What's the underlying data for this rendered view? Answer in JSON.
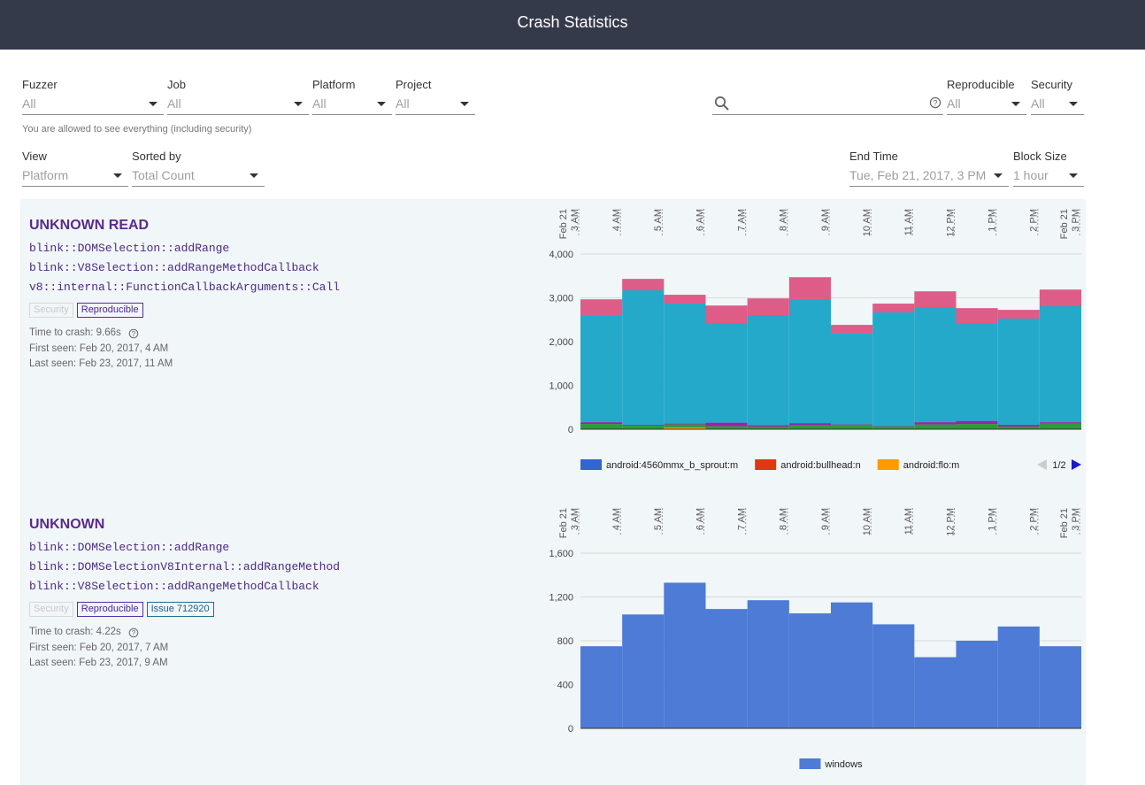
{
  "header": {
    "title": "Crash Statistics"
  },
  "filters": [
    {
      "label": "Fuzzer",
      "value": "All"
    },
    {
      "label": "Job",
      "value": "All"
    },
    {
      "label": "Platform",
      "value": "All"
    },
    {
      "label": "Project",
      "value": "All"
    },
    {
      "label": "Reproducible",
      "value": "All"
    },
    {
      "label": "Security",
      "value": "All"
    }
  ],
  "permission_note": "You are allowed to see everything (including security)",
  "view_controls": [
    {
      "label": "View",
      "value": "Platform"
    },
    {
      "label": "Sorted by",
      "value": "Total Count"
    },
    {
      "label": "End Time",
      "value": "Tue, Feb 21, 2017, 3 PM"
    },
    {
      "label": "Block Size",
      "value": "1 hour"
    }
  ],
  "crashes": [
    {
      "title": "UNKNOWN READ",
      "stack": [
        "blink::DOMSelection::addRange",
        "blink::V8Selection::addRangeMethodCallback",
        "v8::internal::FunctionCallbackArguments::Call"
      ],
      "tags": [
        {
          "text": "Security",
          "kind": "disabled"
        },
        {
          "text": "Reproducible",
          "kind": "active"
        }
      ],
      "time_to_crash": "Time to crash: 9.66s",
      "first_seen": "First seen: Feb 20, 2017, 4 AM",
      "last_seen": "Last seen: Feb 23, 2017, 11 AM",
      "chart_data": {
        "type": "bar",
        "stacked": true,
        "x_labels": [
          [
            "Feb 21",
            "3 AM"
          ],
          [
            "4 AM"
          ],
          [
            "5 AM"
          ],
          [
            "6 AM"
          ],
          [
            "7 AM"
          ],
          [
            "8 AM"
          ],
          [
            "9 AM"
          ],
          [
            "10 AM"
          ],
          [
            "11 AM"
          ],
          [
            "12 PM"
          ],
          [
            "1 PM"
          ],
          [
            "2 PM"
          ],
          [
            "Feb 21",
            "3 PM"
          ]
        ],
        "ylim": [
          0,
          4000
        ],
        "yticks": [
          0,
          {
            "value": 1000,
            "label": "1,000"
          },
          {
            "value": 2000,
            "label": "2,000"
          },
          {
            "value": 3000,
            "label": "3,000"
          },
          {
            "value": 4000,
            "label": "4,000"
          }
        ],
        "grid": true,
        "legend_page": "1/2",
        "series": [
          {
            "name": "android:4560mmx_b_sprout:m",
            "color": "#3366cc",
            "values": [
              0,
              0,
              0,
              0,
              0,
              0,
              0,
              0,
              0,
              0,
              0,
              0
            ]
          },
          {
            "name": "android:bullhead:n",
            "color": "#dc3912",
            "values": [
              0,
              0,
              10,
              0,
              0,
              0,
              0,
              0,
              0,
              0,
              0,
              0
            ]
          },
          {
            "name": "android:flo:m",
            "color": "#ff9900",
            "values": [
              0,
              0,
              30,
              0,
              0,
              0,
              0,
              0,
              10,
              0,
              0,
              0
            ]
          },
          {
            "color": "#2e9a3a",
            "values": [
              120,
              80,
              70,
              70,
              60,
              90,
              100,
              60,
              100,
              120,
              60,
              130
            ]
          },
          {
            "color": "#a020a8",
            "values": [
              40,
              20,
              20,
              80,
              30,
              50,
              10,
              10,
              50,
              70,
              40,
              30
            ]
          },
          {
            "color": "#25a9cb",
            "values": [
              2426,
              3072,
              2739,
              2274,
              2516,
              2830,
              2072,
              2597,
              2628,
              2234,
              2425,
              2648
            ]
          },
          {
            "color": "#dd5c88",
            "values": [
              380,
              260,
              200,
              400,
              380,
              500,
              200,
              200,
              360,
              340,
              200,
              380
            ]
          }
        ]
      }
    },
    {
      "title": "UNKNOWN",
      "stack": [
        "blink::DOMSelection::addRange",
        "blink::DOMSelectionV8Internal::addRangeMethod",
        "blink::V8Selection::addRangeMethodCallback"
      ],
      "tags": [
        {
          "text": "Security",
          "kind": "disabled"
        },
        {
          "text": "Reproducible",
          "kind": "active"
        },
        {
          "text": "Issue 712920",
          "kind": "issue"
        }
      ],
      "time_to_crash": "Time to crash: 4.22s",
      "first_seen": "First seen: Feb 20, 2017, 7 AM",
      "last_seen": "Last seen: Feb 23, 2017, 9 AM",
      "chart_data": {
        "type": "bar",
        "stacked": true,
        "x_labels": [
          [
            "Feb 21",
            "3 AM"
          ],
          [
            "4 AM"
          ],
          [
            "5 AM"
          ],
          [
            "6 AM"
          ],
          [
            "7 AM"
          ],
          [
            "8 AM"
          ],
          [
            "9 AM"
          ],
          [
            "10 AM"
          ],
          [
            "11 AM"
          ],
          [
            "12 PM"
          ],
          [
            "1 PM"
          ],
          [
            "2 PM"
          ],
          [
            "Feb 21",
            "3 PM"
          ]
        ],
        "ylim": [
          0,
          1600
        ],
        "yticks": [
          0,
          400,
          800,
          {
            "value": 1200,
            "label": "1,200"
          },
          {
            "value": 1600,
            "label": "1,600"
          }
        ],
        "grid": true,
        "series": [
          {
            "name": "windows",
            "color": "#4d7bd6",
            "values": [
              750,
              1040,
              1330,
              1090,
              1170,
              1050,
              1150,
              950,
              650,
              800,
              930,
              750
            ]
          }
        ]
      }
    }
  ]
}
